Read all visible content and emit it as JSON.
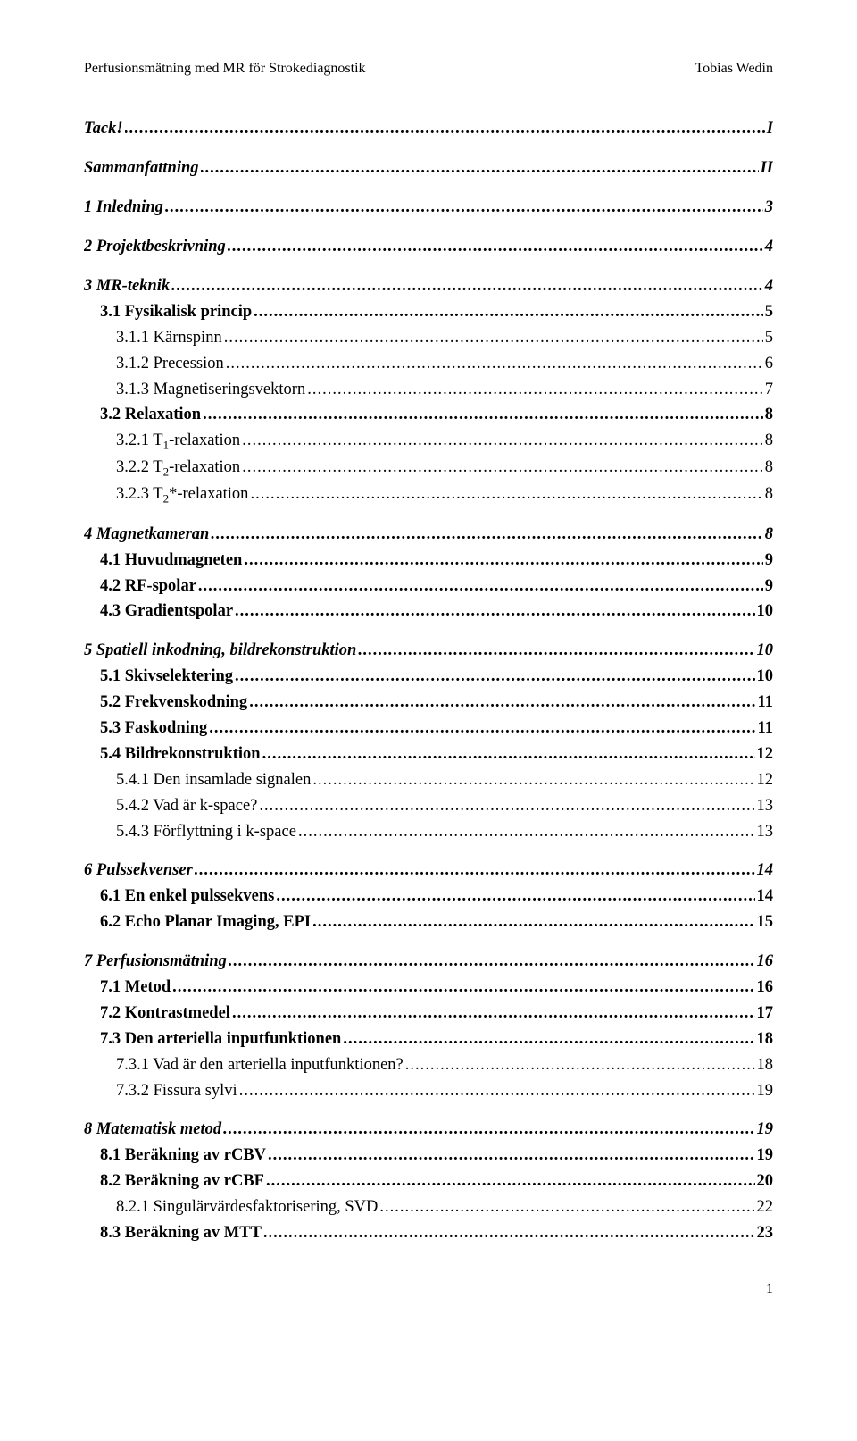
{
  "header": {
    "left": "Perfusionsmätning med MR för Strokediagnostik",
    "right": "Tobias Wedin"
  },
  "toc": [
    {
      "level": 0,
      "label": "Tack!",
      "page": "I"
    },
    {
      "level": 0,
      "label": "Sammanfattning",
      "page": "II"
    },
    {
      "level": 0,
      "label": "1 Inledning",
      "page": "3"
    },
    {
      "level": 0,
      "label": "2 Projektbeskrivning",
      "page": "4"
    },
    {
      "level": 0,
      "label": "3 MR-teknik",
      "page": "4"
    },
    {
      "level": 1,
      "label": "3.1 Fysikalisk princip",
      "page": "5"
    },
    {
      "level": 2,
      "label": "3.1.1 Kärnspinn",
      "page": "5"
    },
    {
      "level": 2,
      "label": "3.1.2 Precession",
      "page": "6"
    },
    {
      "level": 2,
      "label": "3.1.3 Magnetiseringsvektorn",
      "page": "7"
    },
    {
      "level": 1,
      "label": "3.2 Relaxation",
      "page": "8"
    },
    {
      "level": 2,
      "label_html": "3.2.1 T<sub>1</sub>-relaxation",
      "page": "8"
    },
    {
      "level": 2,
      "label_html": "3.2.2 T<sub>2</sub>-relaxation",
      "page": "8"
    },
    {
      "level": 2,
      "label_html": "3.2.3 T<sub>2</sub>*-relaxation",
      "page": "8"
    },
    {
      "level": 0,
      "label": "4 Magnetkameran",
      "page": "8"
    },
    {
      "level": 1,
      "label": "4.1 Huvudmagneten",
      "page": "9"
    },
    {
      "level": 1,
      "label": "4.2 RF-spolar",
      "page": "9"
    },
    {
      "level": 1,
      "label": "4.3 Gradientspolar",
      "page": "10"
    },
    {
      "level": 0,
      "label": "5 Spatiell inkodning, bildrekonstruktion",
      "page": "10"
    },
    {
      "level": 1,
      "label": "5.1 Skivselektering",
      "page": "10"
    },
    {
      "level": 1,
      "label": "5.2 Frekvenskodning",
      "page": "11"
    },
    {
      "level": 1,
      "label": "5.3 Faskodning",
      "page": "11"
    },
    {
      "level": 1,
      "label": "5.4 Bildrekonstruktion",
      "page": "12"
    },
    {
      "level": 2,
      "label": "5.4.1 Den insamlade signalen",
      "page": "12"
    },
    {
      "level": 2,
      "label": "5.4.2 Vad är k-space?",
      "page": "13"
    },
    {
      "level": 2,
      "label": "5.4.3 Förflyttning i k-space",
      "page": "13"
    },
    {
      "level": 0,
      "label": "6 Pulssekvenser",
      "page": "14"
    },
    {
      "level": 1,
      "label": "6.1 En enkel pulssekvens",
      "page": "14"
    },
    {
      "level": 1,
      "label": "6.2 Echo Planar Imaging, EPI",
      "page": "15"
    },
    {
      "level": 0,
      "label": "7 Perfusionsmätning",
      "page": "16"
    },
    {
      "level": 1,
      "label": "7.1 Metod",
      "page": "16"
    },
    {
      "level": 1,
      "label": "7.2 Kontrastmedel",
      "page": "17"
    },
    {
      "level": 1,
      "label": "7.3 Den arteriella inputfunktionen",
      "page": "18"
    },
    {
      "level": 2,
      "label": "7.3.1 Vad är den arteriella inputfunktionen?",
      "page": "18"
    },
    {
      "level": 2,
      "label": "7.3.2 Fissura sylvi",
      "page": "19"
    },
    {
      "level": 0,
      "label": "8 Matematisk metod",
      "page": "19"
    },
    {
      "level": 1,
      "label": "8.1 Beräkning av rCBV",
      "page": "19"
    },
    {
      "level": 1,
      "label": "8.2 Beräkning av rCBF",
      "page": "20"
    },
    {
      "level": 2,
      "label": "8.2.1 Singulärvärdesfaktorisering, SVD",
      "page": "22"
    },
    {
      "level": 1,
      "label": "8.3 Beräkning av MTT",
      "page": "23"
    }
  ],
  "page_number": "1",
  "style": {
    "background_color": "#ffffff",
    "text_color": "#000000",
    "font_family": "Times New Roman",
    "body_fontsize": 16,
    "toc_fontsize": 18.5
  }
}
